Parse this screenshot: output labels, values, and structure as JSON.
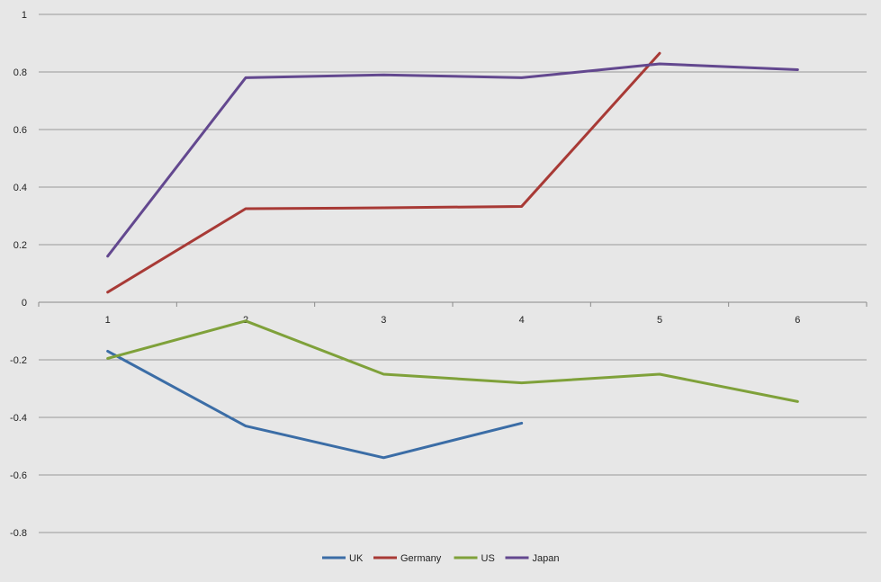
{
  "chart_data": {
    "type": "line",
    "categories": [
      "1",
      "2",
      "3",
      "4",
      "5",
      "6"
    ],
    "ylim": [
      -0.8,
      1
    ],
    "yticks": [
      1,
      0.8,
      0.6,
      0.4,
      0.2,
      0,
      -0.2,
      -0.4,
      -0.6,
      -0.8
    ],
    "ytick_labels": [
      "1",
      "0.8",
      "0.6",
      "0.4",
      "0.2",
      "0",
      "-0.2",
      "-0.4",
      "-0.6",
      "-0.8"
    ],
    "grid": "horizontal",
    "legend_position": "bottom",
    "series": [
      {
        "name": "UK",
        "color": "#3b6da6",
        "values": [
          -0.17,
          -0.43,
          -0.54,
          -0.42,
          null,
          null
        ]
      },
      {
        "name": "Germany",
        "color": "#a83a36",
        "values": [
          0.035,
          0.325,
          0.328,
          0.333,
          0.865,
          null
        ]
      },
      {
        "name": "US",
        "color": "#7fa13a",
        "values": [
          -0.195,
          -0.065,
          -0.25,
          -0.28,
          -0.25,
          -0.345
        ]
      },
      {
        "name": "Japan",
        "color": "#63488f",
        "values": [
          0.16,
          0.78,
          0.79,
          0.78,
          0.828,
          0.808
        ]
      }
    ]
  }
}
